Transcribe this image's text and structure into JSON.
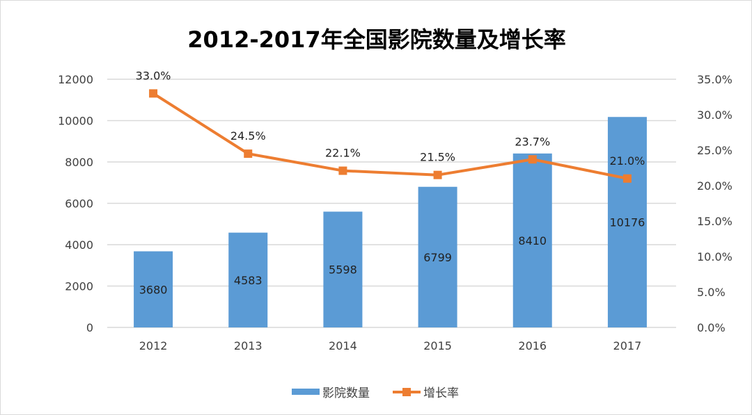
{
  "chart_data": {
    "type": "bar+line",
    "title": "2012-2017年全国影院数量及增长率",
    "categories": [
      "2012",
      "2013",
      "2014",
      "2015",
      "2016",
      "2017"
    ],
    "series": [
      {
        "name": "影院数量",
        "type": "bar",
        "axis": "left",
        "values": [
          3680,
          4583,
          5598,
          6799,
          8410,
          10176
        ],
        "labels": [
          "3680",
          "4583",
          "5598",
          "6799",
          "8410",
          "10176"
        ],
        "color": "#5b9bd5"
      },
      {
        "name": "增长率",
        "type": "line",
        "axis": "right",
        "values": [
          33.0,
          24.5,
          22.1,
          21.5,
          23.7,
          21.0
        ],
        "labels": [
          "33.0%",
          "24.5%",
          "22.1%",
          "21.5%",
          "23.7%",
          "21.0%"
        ],
        "color": "#ed7d31"
      }
    ],
    "left_axis": {
      "ylim": [
        0,
        12000
      ],
      "ticks": [
        "0",
        "2000",
        "4000",
        "6000",
        "8000",
        "10000",
        "12000"
      ]
    },
    "right_axis": {
      "ylim": [
        0,
        35
      ],
      "ticks": [
        "0.0%",
        "5.0%",
        "10.0%",
        "15.0%",
        "20.0%",
        "25.0%",
        "30.0%",
        "35.0%"
      ]
    },
    "grid": true,
    "legend": "bottom"
  }
}
